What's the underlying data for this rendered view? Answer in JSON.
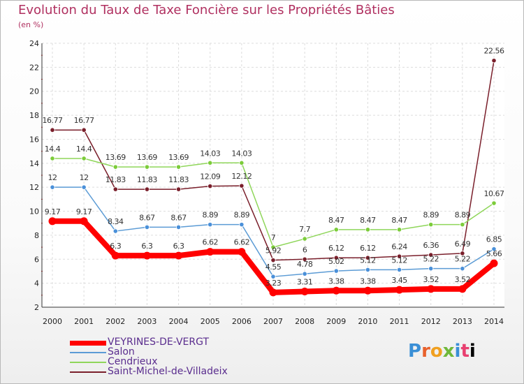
{
  "chart_data": {
    "type": "line",
    "title": "Evolution du Taux de Taxe Foncière sur les Propriétés Bâties",
    "ylabel": "(en %)",
    "xlabel": "",
    "ylim": [
      2,
      24
    ],
    "yticks": [
      2,
      4,
      6,
      8,
      10,
      12,
      14,
      16,
      18,
      20,
      22,
      24
    ],
    "categories": [
      "2000",
      "2001",
      "2002",
      "2003",
      "2004",
      "2005",
      "2006",
      "2007",
      "2008",
      "2009",
      "2010",
      "2011",
      "2012",
      "2013",
      "2014"
    ],
    "grid": true,
    "series": [
      {
        "name": "VEYRINES-DE-VERGT",
        "color": "#ff0000",
        "marker": "#ff0000",
        "values": [
          9.17,
          9.17,
          6.3,
          6.3,
          6.3,
          6.62,
          6.62,
          3.23,
          3.31,
          3.38,
          3.38,
          3.45,
          3.52,
          3.52,
          5.66
        ],
        "labels": [
          "9.17",
          "9.17",
          "6.3",
          "6.3",
          "6.3",
          "6.62",
          "6.62",
          "3.23",
          "3.31",
          "3.38",
          "3.38",
          "3.45",
          "3.52",
          "3.52",
          "5.66"
        ]
      },
      {
        "name": "Salon",
        "color": "#5b9bd5",
        "marker": "#4a90d9",
        "values": [
          12,
          12,
          8.34,
          8.67,
          8.67,
          8.89,
          8.89,
          4.55,
          4.78,
          5.02,
          5.12,
          5.12,
          5.22,
          5.22,
          6.85
        ],
        "labels": [
          "12",
          "12",
          "8.34",
          "8.67",
          "8.67",
          "8.89",
          "8.89",
          "4.55",
          "4.78",
          "5.02",
          "5.12",
          "5.12",
          "5.22",
          "5.22",
          "6.85"
        ]
      },
      {
        "name": "Cendrieux",
        "color": "#8fd65a",
        "marker": "#7ccc3a",
        "values": [
          14.4,
          14.4,
          13.69,
          13.69,
          13.69,
          14.03,
          14.03,
          7,
          7.7,
          8.47,
          8.47,
          8.47,
          8.89,
          8.89,
          10.67
        ],
        "labels": [
          "14.4",
          "14.4",
          "13.69",
          "13.69",
          "13.69",
          "14.03",
          "14.03",
          "7",
          "7.7",
          "8.47",
          "8.47",
          "8.47",
          "8.89",
          "8.89",
          "10.67"
        ]
      },
      {
        "name": "Saint-Michel-de-Villadeix",
        "color": "#7a1f2b",
        "marker": "#7a1f2b",
        "values": [
          16.77,
          16.77,
          11.83,
          11.83,
          11.83,
          12.09,
          12.12,
          5.92,
          6,
          6.12,
          6.12,
          6.24,
          6.36,
          6.49,
          22.56
        ],
        "labels": [
          "16.77",
          "16.77",
          "11.83",
          "11.83",
          "11.83",
          "12.09",
          "12.12",
          "5.92",
          "6",
          "6.12",
          "6.12",
          "6.24",
          "6.36",
          "6.49",
          "22.56"
        ]
      }
    ]
  },
  "logo": {
    "letters": [
      "P",
      "r",
      "o",
      "x",
      "i",
      "t",
      "i"
    ]
  }
}
